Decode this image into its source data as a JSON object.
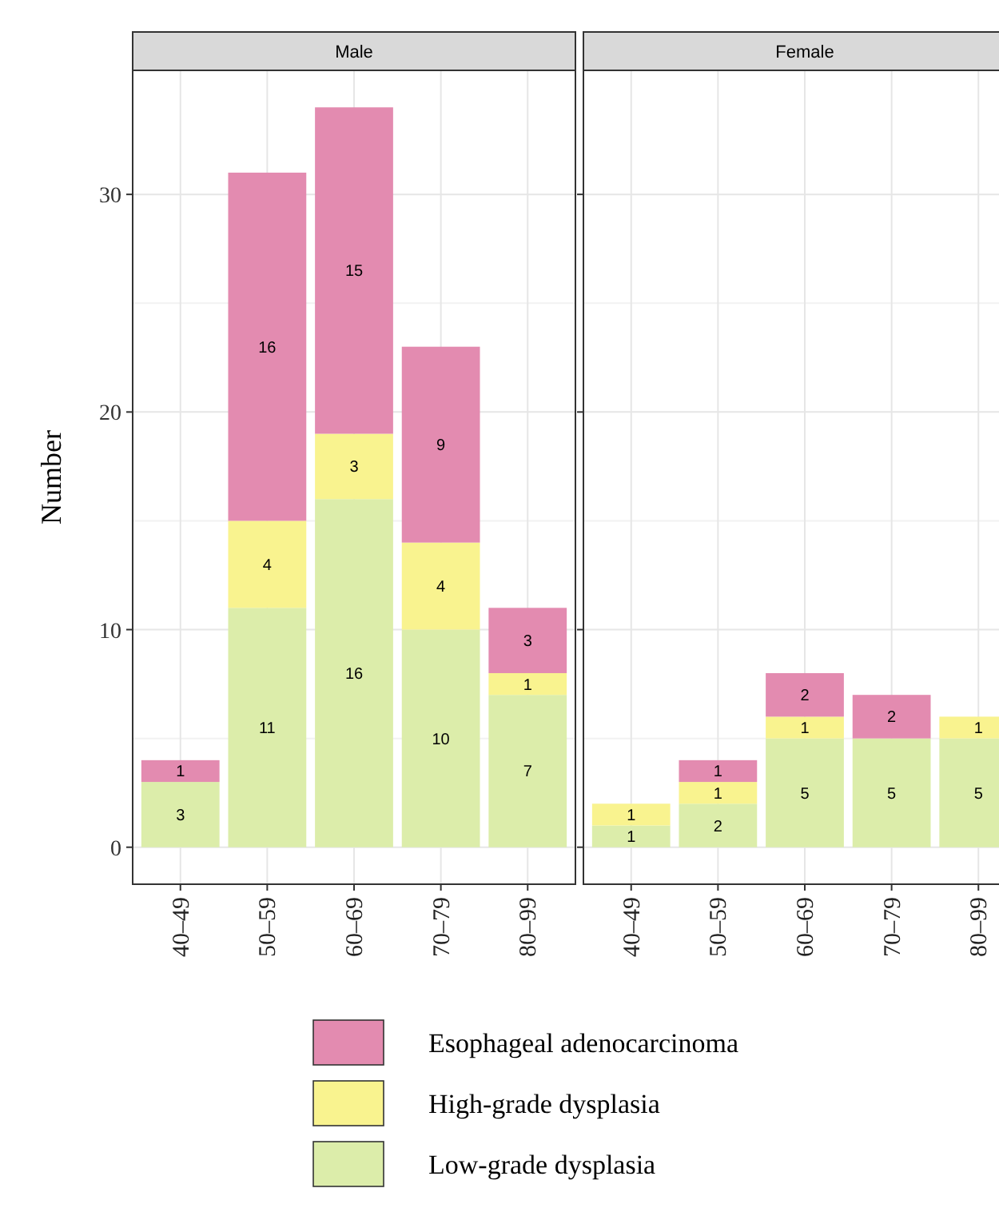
{
  "chart_data": [
    {
      "type": "bar",
      "title": "Male",
      "ylabel": "Number",
      "categories": [
        "40–49",
        "50–59",
        "60–69",
        "70–79",
        "80–99"
      ],
      "stacked": true,
      "ylim": [
        -1.7,
        35.7
      ],
      "yticks": [
        0,
        10,
        20,
        30
      ],
      "grid": true,
      "legend": "bottom",
      "series": [
        {
          "name": "Low-grade dysplasia",
          "color": "#dcedaa",
          "values": [
            3,
            11,
            16,
            10,
            7
          ],
          "value_labels": [
            "3",
            "11",
            "16",
            "10",
            "7"
          ]
        },
        {
          "name": "High-grade dysplasia",
          "color": "#f9f38f",
          "values": [
            0,
            4,
            3,
            4,
            1
          ],
          "value_labels": [
            null,
            "4",
            "3",
            "4",
            "1"
          ]
        },
        {
          "name": "Esophageal adenocarcinoma",
          "color": "#e38bb0",
          "values": [
            1,
            16,
            15,
            9,
            3
          ],
          "value_labels": [
            "1",
            "16",
            "15",
            "9",
            "3"
          ]
        }
      ]
    },
    {
      "type": "bar",
      "title": "Female",
      "categories": [
        "40–49",
        "50–59",
        "60–69",
        "70–79",
        "80–99"
      ],
      "stacked": true,
      "ylim": [
        -1.7,
        35.7
      ],
      "yticks": [
        0,
        10,
        20,
        30
      ],
      "grid": true,
      "tick_labels": "x",
      "series": [
        {
          "color": "#dcedaa",
          "values": [
            1,
            2,
            5,
            5,
            5
          ],
          "value_labels": [
            "1",
            "2",
            "5",
            "5",
            "5"
          ]
        },
        {
          "color": "#f9f38f",
          "values": [
            1,
            1,
            1,
            0,
            1
          ],
          "value_labels": [
            "1",
            "1",
            "1",
            null,
            "1"
          ]
        },
        {
          "color": "#e38bb0",
          "values": [
            0,
            1,
            2,
            2,
            0
          ],
          "value_labels": [
            null,
            "1",
            "2",
            "2",
            null
          ]
        }
      ]
    }
  ]
}
